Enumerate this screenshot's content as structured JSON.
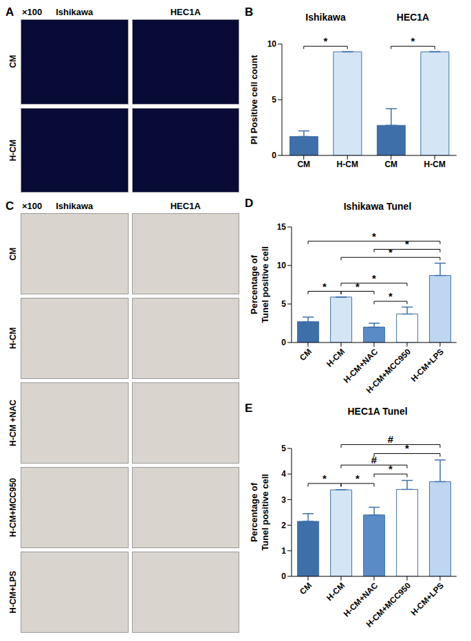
{
  "image_panels": [
    {
      "type": "image_grid",
      "panel_label": "A",
      "magnification": "×100",
      "columns": [
        "Ishikawa",
        "HEC1A"
      ],
      "rows": [
        "CM",
        "H-CM"
      ],
      "color": "#070b36"
    },
    {
      "type": "image_grid",
      "panel_label": "C",
      "magnification": "×100",
      "columns": [
        "Ishikawa",
        "HEC1A"
      ],
      "rows": [
        "CM",
        "H-CM",
        "H-CM +NAC",
        "H-CM+MCC950",
        "H-CM+LPS"
      ],
      "color": "#d9d5ce"
    }
  ],
  "chart_data": [
    {
      "type": "bar",
      "panel_label": "B",
      "y_label": [
        "PI Positive cell count"
      ],
      "colors": [
        "#3f6fa8",
        "#d4e5f6"
      ],
      "groups": [
        {
          "name": "Ishikawa",
          "categories": [
            "CM",
            "H-CM"
          ],
          "values": [
            1.7,
            9.3
          ],
          "errors": [
            0.5,
            0
          ],
          "comparisons": [
            {
              "from": "CM",
              "to": "H-CM",
              "label": "*"
            }
          ]
        },
        {
          "name": "HEC1A",
          "categories": [
            "CM",
            "H-CM"
          ],
          "values": [
            2.7,
            9.3
          ],
          "errors": [
            1.5,
            0
          ],
          "comparisons": [
            {
              "from": "CM",
              "to": "H-CM",
              "label": "*"
            }
          ]
        }
      ],
      "ylim": [
        0,
        10
      ],
      "yticks": [
        0,
        5,
        10
      ]
    },
    {
      "type": "bar",
      "panel_label": "D",
      "title": "Ishikawa Tunel",
      "y_label": [
        "Percentage of",
        "Tunel positive cell"
      ],
      "categories": [
        "CM",
        "H-CM",
        "H-CM+NAC",
        "H-CM+MCC950",
        "H-CM+LPS"
      ],
      "values": [
        2.7,
        5.9,
        2.0,
        3.7,
        8.7
      ],
      "errors": [
        0.6,
        0,
        0.5,
        0.9,
        1.6
      ],
      "colors": [
        "#3f6fa8",
        "#d4e5f6",
        "#5a8bc6",
        "#ffffff",
        "#bed6ef"
      ],
      "ylim": [
        0,
        15
      ],
      "yticks": [
        0,
        5,
        10,
        15
      ],
      "comparisons": [
        {
          "from": "CM",
          "to": "H-CM",
          "label": "*"
        },
        {
          "from": "H-CM",
          "to": "H-CM+NAC",
          "label": "*"
        },
        {
          "from": "H-CM+NAC",
          "to": "H-CM+MCC950",
          "label": "*"
        },
        {
          "from": "H-CM",
          "to": "H-CM+MCC950",
          "label": "*"
        },
        {
          "from": "H-CM",
          "to": "H-CM+LPS",
          "label": "*"
        },
        {
          "from": "H-CM+NAC",
          "to": "H-CM+LPS",
          "label": "*"
        },
        {
          "from": "CM",
          "to": "H-CM+LPS",
          "label": "*"
        }
      ]
    },
    {
      "type": "bar",
      "panel_label": "E",
      "title": "HEC1A Tunel",
      "y_label": [
        "Percentage of",
        "Tunel positive cell"
      ],
      "categories": [
        "CM",
        "H-CM",
        "H-CM+NAC",
        "H-CM+MCC950",
        "H-CM+LPS"
      ],
      "values": [
        2.15,
        3.38,
        2.4,
        3.4,
        3.7
      ],
      "errors": [
        0.3,
        0,
        0.3,
        0.35,
        0.85
      ],
      "colors": [
        "#3f6fa8",
        "#d4e5f6",
        "#5a8bc6",
        "#ffffff",
        "#bed6ef"
      ],
      "ylim": [
        0,
        5
      ],
      "yticks": [
        0,
        1,
        2,
        3,
        4,
        5
      ],
      "comparisons": [
        {
          "from": "CM",
          "to": "H-CM",
          "label": "*"
        },
        {
          "from": "H-CM",
          "to": "H-CM+NAC",
          "label": "*"
        },
        {
          "from": "H-CM+NAC",
          "to": "H-CM+MCC950",
          "label": "*"
        },
        {
          "from": "H-CM",
          "to": "H-CM+MCC950",
          "label": "#"
        },
        {
          "from": "H-CM+NAC",
          "to": "H-CM+LPS",
          "label": "*"
        },
        {
          "from": "H-CM",
          "to": "H-CM+LPS",
          "label": "#"
        }
      ]
    }
  ]
}
